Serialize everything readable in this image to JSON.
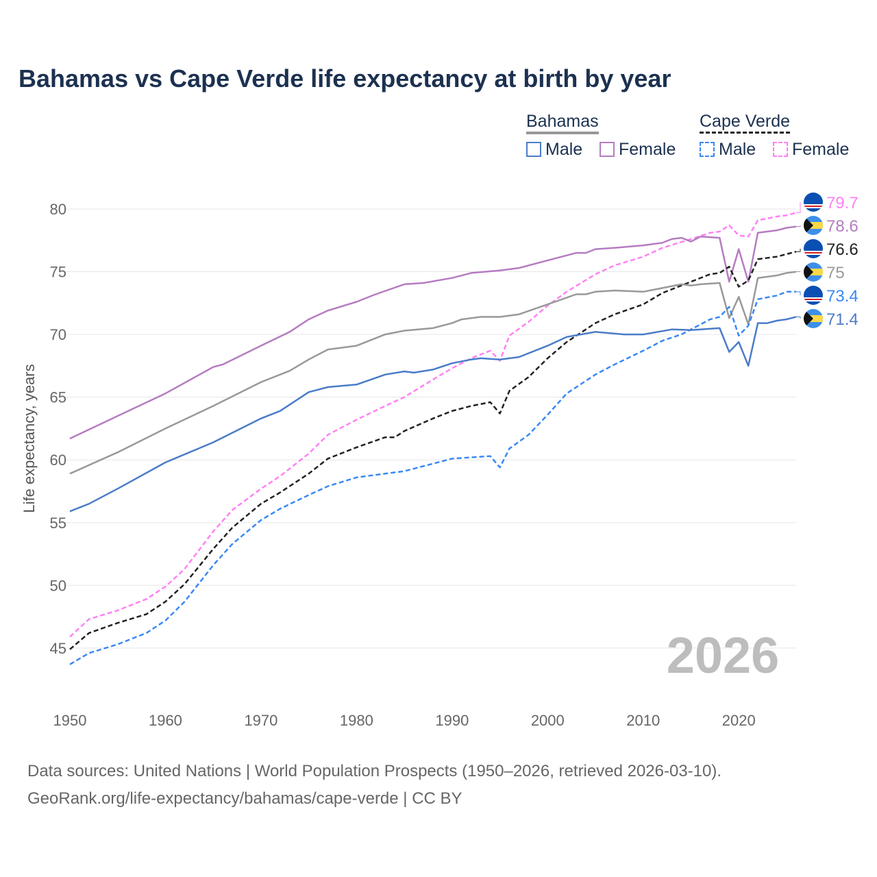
{
  "title": "Bahamas vs Cape Verde life expectancy at birth by year",
  "legend": {
    "group1": "Bahamas",
    "group2": "Cape Verde",
    "male": "Male",
    "female": "Female"
  },
  "year_watermark": "2026",
  "footer": {
    "line1": "Data sources: United Nations | World Population Prospects (1950–2026, retrieved 2026-03-10).",
    "line2": "GeoRank.org/life-expectancy/bahamas/cape-verde | CC BY"
  },
  "chart_data": {
    "type": "line",
    "title": "Bahamas vs Cape Verde life expectancy at birth by year",
    "xlabel": "",
    "ylabel": "Life expectancy, years",
    "xlim": [
      1950,
      2026
    ],
    "ylim": [
      42,
      82
    ],
    "xticks": [
      1950,
      1960,
      1970,
      1980,
      1990,
      2000,
      2010,
      2020
    ],
    "yticks": [
      45,
      50,
      55,
      60,
      65,
      70,
      75,
      80
    ],
    "grid": true,
    "legend_position": "top-right",
    "series": [
      {
        "name": "Cape Verde Female",
        "country": "Cape Verde",
        "color": "#ff80f4",
        "dashed": true,
        "end_label": "79.7",
        "points": [
          [
            1950,
            45.9
          ],
          [
            1952,
            47.3
          ],
          [
            1955,
            48.0
          ],
          [
            1958,
            48.9
          ],
          [
            1960,
            49.9
          ],
          [
            1962,
            51.3
          ],
          [
            1965,
            54.3
          ],
          [
            1967,
            56.0
          ],
          [
            1970,
            57.7
          ],
          [
            1972,
            58.7
          ],
          [
            1975,
            60.5
          ],
          [
            1977,
            62.0
          ],
          [
            1980,
            63.2
          ],
          [
            1983,
            64.3
          ],
          [
            1985,
            65.0
          ],
          [
            1988,
            66.4
          ],
          [
            1990,
            67.3
          ],
          [
            1992,
            68.1
          ],
          [
            1994,
            68.7
          ],
          [
            1995,
            67.9
          ],
          [
            1996,
            69.9
          ],
          [
            1998,
            71.0
          ],
          [
            2000,
            72.3
          ],
          [
            2002,
            73.4
          ],
          [
            2005,
            74.8
          ],
          [
            2007,
            75.5
          ],
          [
            2010,
            76.2
          ],
          [
            2012,
            76.9
          ],
          [
            2015,
            77.6
          ],
          [
            2017,
            78.1
          ],
          [
            2018,
            78.2
          ],
          [
            2019,
            78.7
          ],
          [
            2020,
            77.9
          ],
          [
            2021,
            77.8
          ],
          [
            2022,
            79.1
          ],
          [
            2024,
            79.4
          ],
          [
            2025,
            79.5
          ],
          [
            2026,
            79.7
          ]
        ]
      },
      {
        "name": "Bahamas Female",
        "country": "Bahamas",
        "color": "#b57cc1",
        "dashed": false,
        "end_label": "78.6",
        "points": [
          [
            1950,
            61.7
          ],
          [
            1955,
            63.5
          ],
          [
            1960,
            65.3
          ],
          [
            1965,
            67.4
          ],
          [
            1966,
            67.6
          ],
          [
            1970,
            69.1
          ],
          [
            1973,
            70.2
          ],
          [
            1975,
            71.2
          ],
          [
            1977,
            71.9
          ],
          [
            1980,
            72.6
          ],
          [
            1982,
            73.2
          ],
          [
            1985,
            74.0
          ],
          [
            1987,
            74.1
          ],
          [
            1990,
            74.5
          ],
          [
            1992,
            74.9
          ],
          [
            1995,
            75.1
          ],
          [
            1997,
            75.3
          ],
          [
            2000,
            75.9
          ],
          [
            2003,
            76.5
          ],
          [
            2004,
            76.5
          ],
          [
            2005,
            76.8
          ],
          [
            2007,
            76.9
          ],
          [
            2010,
            77.1
          ],
          [
            2012,
            77.3
          ],
          [
            2013,
            77.6
          ],
          [
            2014,
            77.7
          ],
          [
            2015,
            77.4
          ],
          [
            2016,
            77.8
          ],
          [
            2018,
            77.7
          ],
          [
            2019,
            74.2
          ],
          [
            2020,
            76.8
          ],
          [
            2021,
            74.2
          ],
          [
            2022,
            78.1
          ],
          [
            2024,
            78.3
          ],
          [
            2025,
            78.5
          ],
          [
            2026,
            78.6
          ]
        ]
      },
      {
        "name": "Cape Verde",
        "country": "Cape Verde",
        "color": "#222222",
        "dashed": true,
        "end_label": "76.6",
        "points": [
          [
            1950,
            44.9
          ],
          [
            1952,
            46.2
          ],
          [
            1955,
            47.0
          ],
          [
            1958,
            47.7
          ],
          [
            1960,
            48.7
          ],
          [
            1962,
            50.1
          ],
          [
            1965,
            52.9
          ],
          [
            1967,
            54.6
          ],
          [
            1970,
            56.5
          ],
          [
            1972,
            57.4
          ],
          [
            1975,
            58.9
          ],
          [
            1977,
            60.1
          ],
          [
            1980,
            61.0
          ],
          [
            1983,
            61.8
          ],
          [
            1984,
            61.8
          ],
          [
            1985,
            62.3
          ],
          [
            1988,
            63.3
          ],
          [
            1990,
            63.9
          ],
          [
            1992,
            64.3
          ],
          [
            1994,
            64.6
          ],
          [
            1995,
            63.7
          ],
          [
            1996,
            65.5
          ],
          [
            1998,
            66.6
          ],
          [
            2000,
            68.1
          ],
          [
            2002,
            69.4
          ],
          [
            2005,
            70.9
          ],
          [
            2007,
            71.6
          ],
          [
            2010,
            72.4
          ],
          [
            2012,
            73.3
          ],
          [
            2015,
            74.2
          ],
          [
            2017,
            74.8
          ],
          [
            2018,
            74.9
          ],
          [
            2019,
            75.4
          ],
          [
            2020,
            73.8
          ],
          [
            2021,
            74.3
          ],
          [
            2022,
            76.0
          ],
          [
            2024,
            76.2
          ],
          [
            2025,
            76.4
          ],
          [
            2026,
            76.6
          ]
        ]
      },
      {
        "name": "Bahamas",
        "country": "Bahamas",
        "color": "#999999",
        "dashed": false,
        "end_label": "75",
        "points": [
          [
            1950,
            58.9
          ],
          [
            1955,
            60.6
          ],
          [
            1960,
            62.5
          ],
          [
            1965,
            64.3
          ],
          [
            1970,
            66.2
          ],
          [
            1973,
            67.1
          ],
          [
            1975,
            68.0
          ],
          [
            1977,
            68.8
          ],
          [
            1980,
            69.1
          ],
          [
            1983,
            70.0
          ],
          [
            1985,
            70.3
          ],
          [
            1988,
            70.5
          ],
          [
            1990,
            70.9
          ],
          [
            1991,
            71.2
          ],
          [
            1993,
            71.4
          ],
          [
            1995,
            71.4
          ],
          [
            1997,
            71.6
          ],
          [
            2000,
            72.4
          ],
          [
            2003,
            73.2
          ],
          [
            2004,
            73.2
          ],
          [
            2005,
            73.4
          ],
          [
            2007,
            73.5
          ],
          [
            2010,
            73.4
          ],
          [
            2012,
            73.7
          ],
          [
            2014,
            74.0
          ],
          [
            2015,
            73.9
          ],
          [
            2016,
            74.0
          ],
          [
            2018,
            74.1
          ],
          [
            2019,
            71.3
          ],
          [
            2020,
            73.0
          ],
          [
            2021,
            70.8
          ],
          [
            2022,
            74.5
          ],
          [
            2024,
            74.7
          ],
          [
            2025,
            74.9
          ],
          [
            2026,
            75.0
          ]
        ]
      },
      {
        "name": "Cape Verde Male",
        "country": "Cape Verde",
        "color": "#3a88f5",
        "dashed": true,
        "end_label": "73.4",
        "points": [
          [
            1950,
            43.7
          ],
          [
            1952,
            44.6
          ],
          [
            1955,
            45.3
          ],
          [
            1958,
            46.2
          ],
          [
            1960,
            47.2
          ],
          [
            1962,
            48.7
          ],
          [
            1965,
            51.6
          ],
          [
            1967,
            53.3
          ],
          [
            1970,
            55.2
          ],
          [
            1972,
            56.1
          ],
          [
            1975,
            57.2
          ],
          [
            1977,
            57.9
          ],
          [
            1980,
            58.6
          ],
          [
            1983,
            58.9
          ],
          [
            1985,
            59.1
          ],
          [
            1988,
            59.7
          ],
          [
            1990,
            60.1
          ],
          [
            1992,
            60.2
          ],
          [
            1994,
            60.3
          ],
          [
            1995,
            59.4
          ],
          [
            1996,
            60.9
          ],
          [
            1998,
            62.0
          ],
          [
            2000,
            63.6
          ],
          [
            2002,
            65.3
          ],
          [
            2005,
            66.8
          ],
          [
            2007,
            67.6
          ],
          [
            2010,
            68.7
          ],
          [
            2012,
            69.5
          ],
          [
            2014,
            70.0
          ],
          [
            2016,
            70.8
          ],
          [
            2017,
            71.2
          ],
          [
            2018,
            71.4
          ],
          [
            2019,
            72.2
          ],
          [
            2020,
            69.9
          ],
          [
            2021,
            70.7
          ],
          [
            2022,
            72.8
          ],
          [
            2024,
            73.1
          ],
          [
            2025,
            73.4
          ],
          [
            2026,
            73.4
          ]
        ]
      },
      {
        "name": "Bahamas Male",
        "country": "Bahamas",
        "color": "#4a7cc9",
        "dashed": false,
        "end_label": "71.4",
        "points": [
          [
            1950,
            55.9
          ],
          [
            1952,
            56.5
          ],
          [
            1955,
            57.7
          ],
          [
            1960,
            59.8
          ],
          [
            1965,
            61.4
          ],
          [
            1970,
            63.3
          ],
          [
            1972,
            63.9
          ],
          [
            1975,
            65.4
          ],
          [
            1977,
            65.8
          ],
          [
            1980,
            66.0
          ],
          [
            1983,
            66.8
          ],
          [
            1985,
            67.05
          ],
          [
            1986,
            66.95
          ],
          [
            1988,
            67.2
          ],
          [
            1990,
            67.7
          ],
          [
            1992,
            68.0
          ],
          [
            1993,
            68.1
          ],
          [
            1995,
            68.0
          ],
          [
            1997,
            68.2
          ],
          [
            2000,
            69.1
          ],
          [
            2002,
            69.8
          ],
          [
            2005,
            70.2
          ],
          [
            2008,
            70.0
          ],
          [
            2010,
            70.0
          ],
          [
            2013,
            70.4
          ],
          [
            2015,
            70.35
          ],
          [
            2018,
            70.5
          ],
          [
            2019,
            68.6
          ],
          [
            2020,
            69.4
          ],
          [
            2021,
            67.5
          ],
          [
            2022,
            70.9
          ],
          [
            2023,
            70.9
          ],
          [
            2024,
            71.1
          ],
          [
            2025,
            71.2
          ],
          [
            2026,
            71.4
          ]
        ]
      }
    ]
  }
}
